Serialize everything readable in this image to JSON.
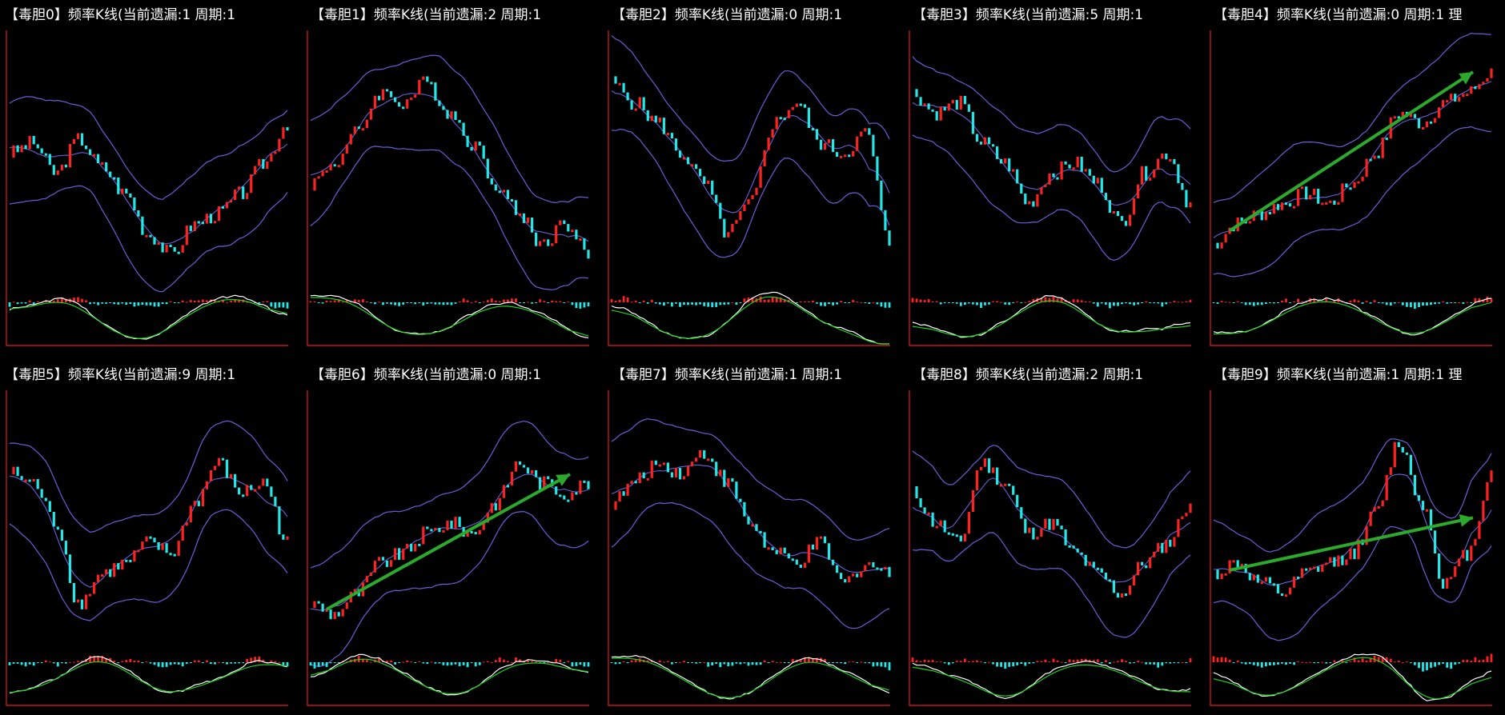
{
  "panels": [
    {
      "title": "【毒胆0】频率K线(当前遗漏:1 周期:1",
      "price_path": [
        0.55,
        0.6,
        0.45,
        0.62,
        0.48,
        0.35,
        0.15,
        0.05,
        0.2,
        0.25,
        0.35,
        0.5,
        0.7
      ],
      "trend": false
    },
    {
      "title": "【毒胆1】频率K线(当前遗漏:2 周期:1",
      "price_path": [
        0.4,
        0.5,
        0.65,
        0.85,
        0.8,
        0.9,
        0.75,
        0.6,
        0.4,
        0.25,
        0.1,
        0.2,
        0.05
      ],
      "trend": false
    },
    {
      "title": "【毒胆2】频率K线(当前遗漏:0 周期:1",
      "price_path": [
        0.9,
        0.8,
        0.7,
        0.55,
        0.4,
        0.15,
        0.3,
        0.7,
        0.8,
        0.6,
        0.55,
        0.65,
        0.1
      ],
      "trend": false
    },
    {
      "title": "【毒胆3】频率K线(当前遗漏:5 周期:1",
      "price_path": [
        0.85,
        0.75,
        0.8,
        0.6,
        0.5,
        0.3,
        0.45,
        0.5,
        0.4,
        0.2,
        0.45,
        0.55,
        0.3
      ],
      "trend": false
    },
    {
      "title": "【毒胆4】频率K线(当前遗漏:0 周期:1 理",
      "price_path": [
        0.1,
        0.2,
        0.25,
        0.3,
        0.35,
        0.3,
        0.4,
        0.55,
        0.75,
        0.7,
        0.8,
        0.85,
        0.95
      ],
      "trend": true
    },
    {
      "title": "【毒胆5】频率K线(当前遗漏:9 周期:1",
      "price_path": [
        0.75,
        0.7,
        0.5,
        0.1,
        0.25,
        0.3,
        0.4,
        0.35,
        0.6,
        0.8,
        0.65,
        0.7,
        0.4
      ],
      "trend": false
    },
    {
      "title": "【毒胆6】频率K线(当前遗漏:0 周期:1",
      "price_path": [
        0.1,
        0.05,
        0.15,
        0.3,
        0.35,
        0.45,
        0.5,
        0.45,
        0.6,
        0.8,
        0.7,
        0.65,
        0.7
      ],
      "trend": true
    },
    {
      "title": "【毒胆7】频率K线(当前遗漏:1 周期:1",
      "price_path": [
        0.6,
        0.7,
        0.8,
        0.75,
        0.85,
        0.7,
        0.5,
        0.35,
        0.3,
        0.4,
        0.2,
        0.3,
        0.25
      ],
      "trend": false
    },
    {
      "title": "【毒胆8】频率K线(当前遗漏:2 周期:1",
      "price_path": [
        0.65,
        0.5,
        0.4,
        0.8,
        0.7,
        0.45,
        0.5,
        0.35,
        0.25,
        0.15,
        0.3,
        0.4,
        0.6
      ],
      "trend": false
    },
    {
      "title": "【毒胆9】频率K线(当前遗漏:1 周期:1 理",
      "price_path": [
        0.25,
        0.3,
        0.2,
        0.15,
        0.25,
        0.3,
        0.35,
        0.55,
        0.9,
        0.6,
        0.2,
        0.35,
        0.75
      ],
      "trend": true
    }
  ],
  "chart_data": {
    "type": "line",
    "title": "",
    "series_colors": {
      "up": "#ff2020",
      "down": "#20e8e8",
      "band": "#6a5fd8",
      "dif": "#ffffff",
      "dea": "#20d020",
      "axis": "#c01818",
      "trend": "#2caa2c"
    },
    "grid": false
  }
}
